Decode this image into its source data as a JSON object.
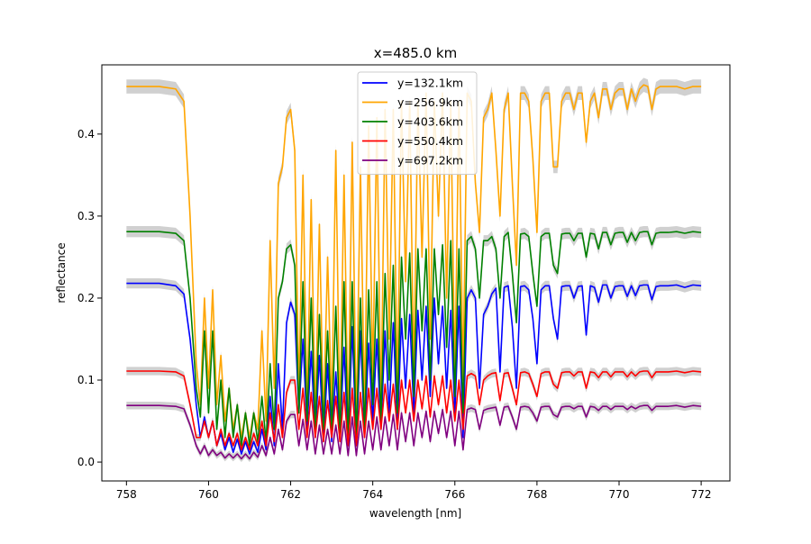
{
  "chart_data": {
    "type": "line",
    "title": "x=485.0 km",
    "xlabel": "wavelength [nm]",
    "ylabel": "reflectance",
    "xlim": [
      757.4,
      772.7
    ],
    "ylim": [
      -0.023,
      0.4844
    ],
    "xticks": [
      758,
      760,
      762,
      764,
      766,
      768,
      770,
      772
    ],
    "yticks": [
      0.0,
      0.1,
      0.2,
      0.3,
      0.4
    ],
    "xtick_labels": [
      "758",
      "760",
      "762",
      "764",
      "766",
      "768",
      "770",
      "772"
    ],
    "ytick_labels": [
      "0.0",
      "0.1",
      "0.2",
      "0.3",
      "0.4"
    ],
    "grid": false,
    "legend_position": "top-center",
    "band_color": "#c0c0c0",
    "x": [
      758.0,
      758.8,
      759.2,
      759.4,
      759.55,
      759.7,
      759.8,
      759.9,
      760.0,
      760.1,
      760.2,
      760.3,
      760.4,
      760.5,
      760.6,
      760.7,
      760.8,
      760.9,
      761.0,
      761.1,
      761.2,
      761.3,
      761.4,
      761.5,
      761.6,
      761.7,
      761.8,
      761.9,
      762.0,
      762.1,
      762.2,
      762.3,
      762.4,
      762.5,
      762.6,
      762.7,
      762.8,
      762.9,
      763.0,
      763.1,
      763.2,
      763.3,
      763.4,
      763.5,
      763.6,
      763.7,
      763.8,
      763.9,
      764.0,
      764.1,
      764.2,
      764.3,
      764.4,
      764.5,
      764.6,
      764.7,
      764.8,
      764.9,
      765.0,
      765.1,
      765.2,
      765.3,
      765.4,
      765.5,
      765.6,
      765.7,
      765.8,
      765.9,
      766.0,
      766.1,
      766.2,
      766.3,
      766.4,
      766.5,
      766.6,
      766.7,
      766.8,
      766.9,
      767.0,
      767.1,
      767.2,
      767.3,
      767.4,
      767.5,
      767.6,
      767.7,
      767.8,
      767.9,
      768.0,
      768.1,
      768.2,
      768.3,
      768.4,
      768.5,
      768.6,
      768.7,
      768.8,
      768.9,
      769.0,
      769.1,
      769.2,
      769.3,
      769.4,
      769.5,
      769.6,
      769.7,
      769.8,
      769.9,
      770.0,
      770.1,
      770.2,
      770.3,
      770.4,
      770.5,
      770.6,
      770.7,
      770.8,
      770.9,
      771.0,
      771.2,
      771.4,
      771.6,
      771.8,
      772.0
    ],
    "series": [
      {
        "name": "y=132.1km",
        "color": "#0000ff",
        "values": [
          0.218,
          0.218,
          0.215,
          0.205,
          0.15,
          0.07,
          0.03,
          0.055,
          0.03,
          0.05,
          0.02,
          0.035,
          0.015,
          0.03,
          0.012,
          0.028,
          0.01,
          0.025,
          0.01,
          0.025,
          0.012,
          0.04,
          0.015,
          0.08,
          0.02,
          0.12,
          0.04,
          0.17,
          0.195,
          0.18,
          0.06,
          0.15,
          0.04,
          0.135,
          0.03,
          0.13,
          0.025,
          0.12,
          0.025,
          0.11,
          0.03,
          0.14,
          0.02,
          0.165,
          0.02,
          0.16,
          0.03,
          0.145,
          0.05,
          0.15,
          0.04,
          0.16,
          0.06,
          0.17,
          0.04,
          0.175,
          0.09,
          0.18,
          0.06,
          0.185,
          0.1,
          0.19,
          0.08,
          0.2,
          0.12,
          0.19,
          0.09,
          0.185,
          0.06,
          0.19,
          0.03,
          0.2,
          0.21,
          0.2,
          0.09,
          0.18,
          0.19,
          0.205,
          0.212,
          0.11,
          0.213,
          0.215,
          0.165,
          0.09,
          0.214,
          0.215,
          0.21,
          0.175,
          0.12,
          0.21,
          0.215,
          0.215,
          0.175,
          0.15,
          0.214,
          0.215,
          0.215,
          0.2,
          0.214,
          0.215,
          0.155,
          0.215,
          0.213,
          0.195,
          0.216,
          0.216,
          0.2,
          0.214,
          0.215,
          0.215,
          0.202,
          0.215,
          0.203,
          0.215,
          0.216,
          0.216,
          0.198,
          0.214,
          0.215,
          0.215,
          0.216,
          0.213,
          0.216,
          0.215
        ]
      },
      {
        "name": "y=256.9km",
        "color": "#ffa500",
        "values": [
          0.458,
          0.458,
          0.455,
          0.44,
          0.3,
          0.12,
          0.07,
          0.2,
          0.09,
          0.21,
          0.07,
          0.13,
          0.05,
          0.09,
          0.04,
          0.07,
          0.03,
          0.06,
          0.03,
          0.06,
          0.04,
          0.16,
          0.05,
          0.27,
          0.09,
          0.34,
          0.36,
          0.42,
          0.43,
          0.38,
          0.08,
          0.35,
          0.06,
          0.32,
          0.05,
          0.29,
          0.05,
          0.25,
          0.06,
          0.38,
          0.04,
          0.35,
          0.04,
          0.39,
          0.04,
          0.36,
          0.06,
          0.41,
          0.1,
          0.42,
          0.06,
          0.43,
          0.15,
          0.43,
          0.08,
          0.44,
          0.22,
          0.44,
          0.1,
          0.44,
          0.25,
          0.45,
          0.15,
          0.44,
          0.3,
          0.45,
          0.2,
          0.44,
          0.1,
          0.44,
          0.1,
          0.45,
          0.44,
          0.34,
          0.28,
          0.42,
          0.43,
          0.45,
          0.38,
          0.3,
          0.43,
          0.45,
          0.34,
          0.24,
          0.45,
          0.45,
          0.44,
          0.37,
          0.28,
          0.44,
          0.45,
          0.45,
          0.36,
          0.36,
          0.44,
          0.45,
          0.45,
          0.43,
          0.45,
          0.45,
          0.39,
          0.44,
          0.45,
          0.42,
          0.455,
          0.455,
          0.43,
          0.45,
          0.455,
          0.455,
          0.43,
          0.455,
          0.44,
          0.455,
          0.46,
          0.458,
          0.43,
          0.455,
          0.458,
          0.458,
          0.458,
          0.455,
          0.458,
          0.458
        ]
      },
      {
        "name": "y=403.6km",
        "color": "#008000",
        "values": [
          0.281,
          0.281,
          0.279,
          0.27,
          0.2,
          0.09,
          0.055,
          0.16,
          0.06,
          0.16,
          0.04,
          0.1,
          0.03,
          0.09,
          0.03,
          0.07,
          0.02,
          0.06,
          0.02,
          0.06,
          0.025,
          0.08,
          0.025,
          0.12,
          0.04,
          0.2,
          0.22,
          0.26,
          0.265,
          0.24,
          0.06,
          0.22,
          0.05,
          0.2,
          0.04,
          0.18,
          0.04,
          0.16,
          0.04,
          0.19,
          0.03,
          0.22,
          0.03,
          0.22,
          0.03,
          0.2,
          0.04,
          0.21,
          0.07,
          0.22,
          0.05,
          0.23,
          0.1,
          0.24,
          0.06,
          0.25,
          0.15,
          0.255,
          0.08,
          0.26,
          0.16,
          0.26,
          0.1,
          0.26,
          0.18,
          0.265,
          0.14,
          0.27,
          0.08,
          0.26,
          0.06,
          0.27,
          0.275,
          0.26,
          0.2,
          0.27,
          0.27,
          0.275,
          0.26,
          0.2,
          0.275,
          0.28,
          0.23,
          0.17,
          0.278,
          0.279,
          0.275,
          0.23,
          0.19,
          0.275,
          0.279,
          0.279,
          0.24,
          0.23,
          0.278,
          0.279,
          0.279,
          0.27,
          0.279,
          0.279,
          0.25,
          0.279,
          0.278,
          0.26,
          0.28,
          0.28,
          0.265,
          0.279,
          0.28,
          0.28,
          0.268,
          0.28,
          0.27,
          0.28,
          0.281,
          0.281,
          0.265,
          0.279,
          0.28,
          0.28,
          0.281,
          0.279,
          0.281,
          0.28
        ]
      },
      {
        "name": "y=550.4km",
        "color": "#ff0000",
        "values": [
          0.111,
          0.111,
          0.11,
          0.105,
          0.07,
          0.03,
          0.03,
          0.05,
          0.03,
          0.05,
          0.02,
          0.04,
          0.02,
          0.035,
          0.02,
          0.035,
          0.015,
          0.03,
          0.015,
          0.035,
          0.02,
          0.05,
          0.02,
          0.06,
          0.025,
          0.07,
          0.03,
          0.085,
          0.1,
          0.1,
          0.04,
          0.09,
          0.03,
          0.085,
          0.03,
          0.08,
          0.025,
          0.075,
          0.03,
          0.08,
          0.025,
          0.085,
          0.02,
          0.09,
          0.02,
          0.085,
          0.03,
          0.09,
          0.04,
          0.09,
          0.04,
          0.095,
          0.05,
          0.095,
          0.04,
          0.1,
          0.06,
          0.1,
          0.05,
          0.1,
          0.065,
          0.105,
          0.055,
          0.105,
          0.07,
          0.105,
          0.06,
          0.1,
          0.05,
          0.1,
          0.04,
          0.105,
          0.108,
          0.105,
          0.07,
          0.1,
          0.105,
          0.108,
          0.109,
          0.075,
          0.108,
          0.109,
          0.09,
          0.07,
          0.109,
          0.11,
          0.108,
          0.095,
          0.08,
          0.108,
          0.11,
          0.11,
          0.095,
          0.09,
          0.109,
          0.11,
          0.11,
          0.105,
          0.11,
          0.11,
          0.09,
          0.11,
          0.109,
          0.103,
          0.11,
          0.11,
          0.104,
          0.11,
          0.11,
          0.11,
          0.104,
          0.11,
          0.105,
          0.11,
          0.111,
          0.111,
          0.103,
          0.11,
          0.11,
          0.11,
          0.111,
          0.109,
          0.111,
          0.11
        ]
      },
      {
        "name": "y=697.2km",
        "color": "#800080",
        "values": [
          0.069,
          0.069,
          0.068,
          0.065,
          0.045,
          0.02,
          0.01,
          0.02,
          0.008,
          0.015,
          0.008,
          0.012,
          0.005,
          0.01,
          0.005,
          0.01,
          0.004,
          0.01,
          0.004,
          0.012,
          0.006,
          0.02,
          0.008,
          0.03,
          0.01,
          0.04,
          0.015,
          0.05,
          0.058,
          0.058,
          0.02,
          0.052,
          0.015,
          0.05,
          0.01,
          0.045,
          0.01,
          0.04,
          0.01,
          0.045,
          0.01,
          0.05,
          0.008,
          0.055,
          0.008,
          0.05,
          0.01,
          0.05,
          0.015,
          0.055,
          0.015,
          0.055,
          0.02,
          0.058,
          0.015,
          0.06,
          0.025,
          0.06,
          0.02,
          0.06,
          0.03,
          0.062,
          0.025,
          0.062,
          0.035,
          0.064,
          0.03,
          0.062,
          0.02,
          0.062,
          0.015,
          0.064,
          0.066,
          0.064,
          0.04,
          0.063,
          0.065,
          0.066,
          0.067,
          0.045,
          0.067,
          0.068,
          0.055,
          0.04,
          0.067,
          0.068,
          0.067,
          0.06,
          0.05,
          0.067,
          0.068,
          0.068,
          0.058,
          0.055,
          0.067,
          0.068,
          0.068,
          0.065,
          0.068,
          0.068,
          0.055,
          0.068,
          0.067,
          0.063,
          0.068,
          0.068,
          0.064,
          0.068,
          0.068,
          0.068,
          0.064,
          0.068,
          0.065,
          0.068,
          0.069,
          0.069,
          0.063,
          0.068,
          0.068,
          0.068,
          0.069,
          0.067,
          0.069,
          0.068
        ]
      }
    ]
  }
}
